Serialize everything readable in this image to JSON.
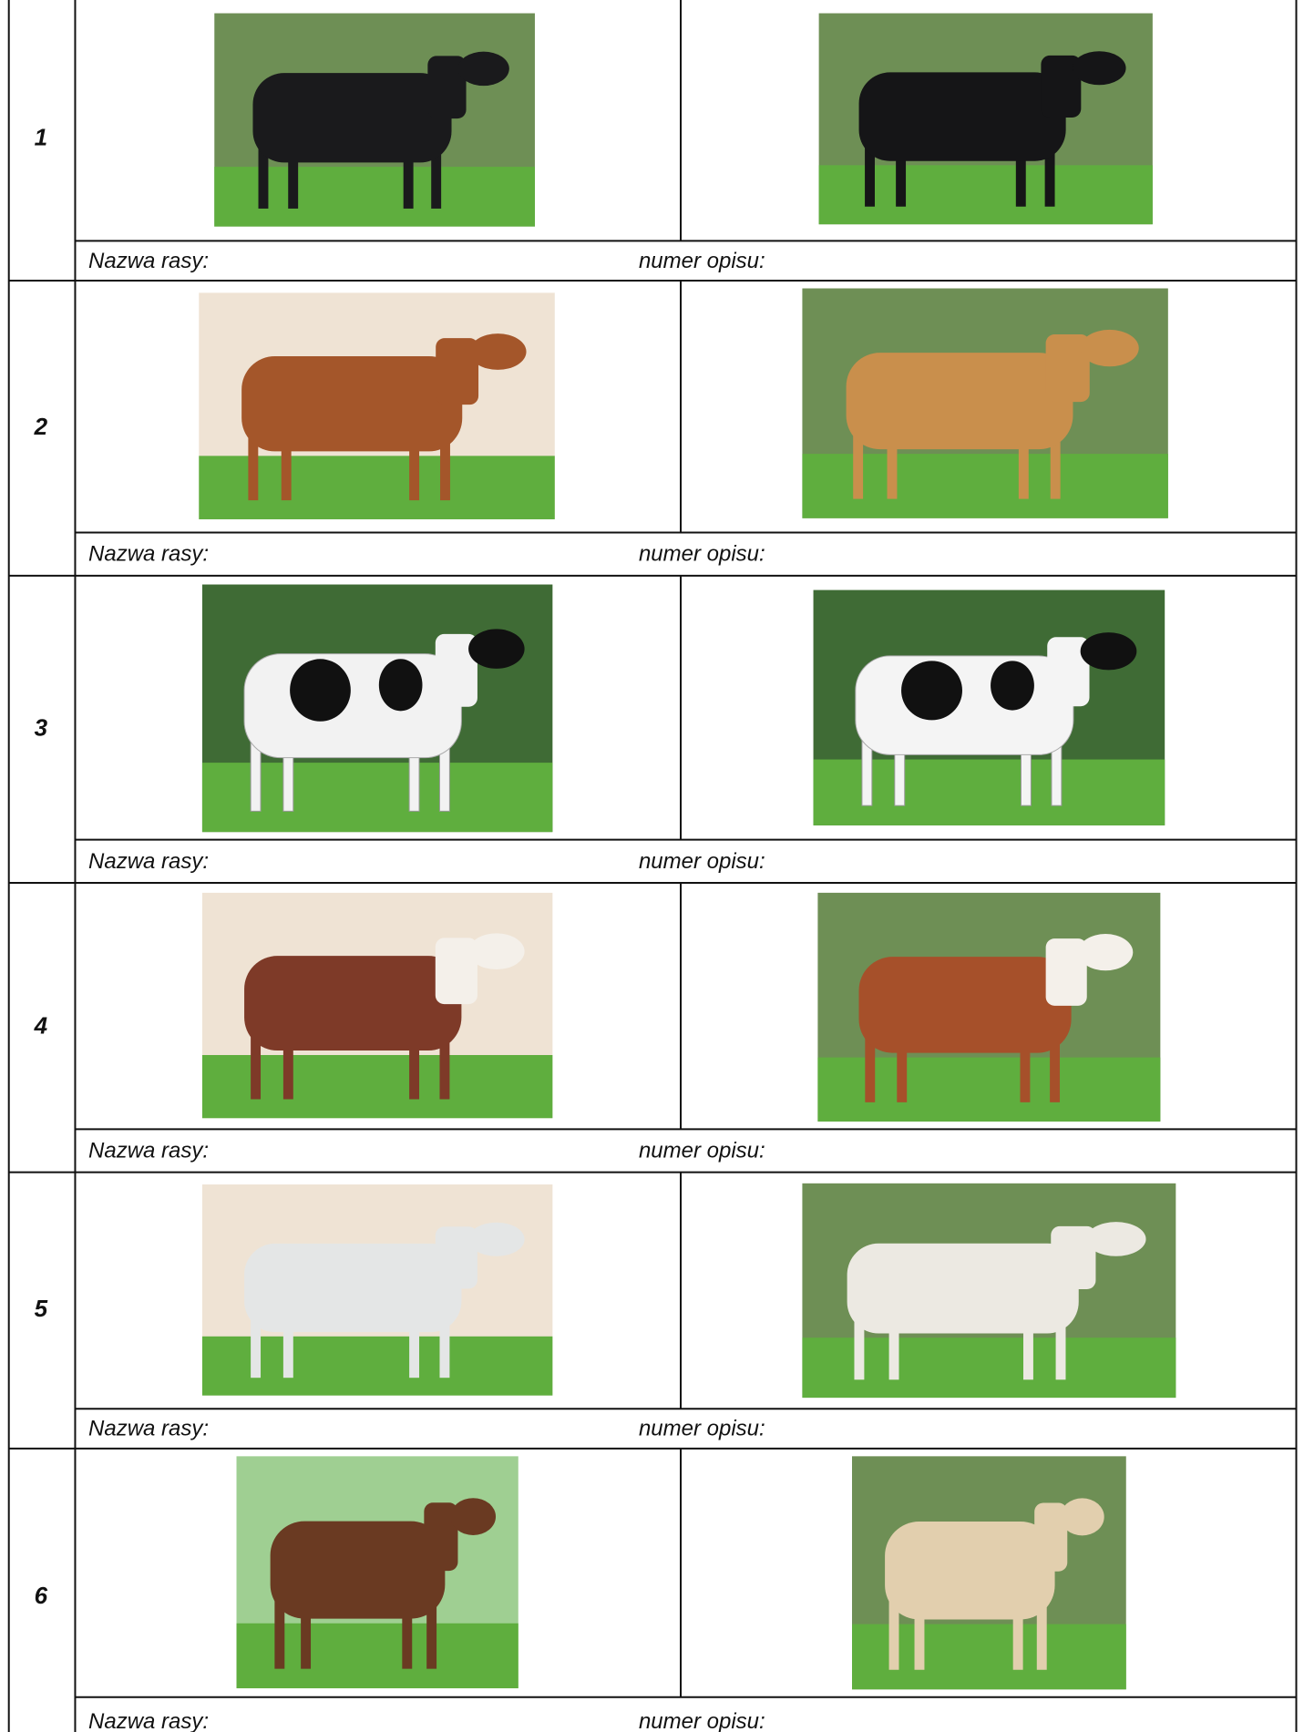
{
  "rows": [
    {
      "number": "1",
      "breed_label": "Nazwa rasy:",
      "description_label": "numer opisu:"
    },
    {
      "number": "2",
      "breed_label": "Nazwa rasy:",
      "description_label": "numer opisu:"
    },
    {
      "number": "3",
      "breed_label": "Nazwa rasy:",
      "description_label": "numer opisu:"
    },
    {
      "number": "4",
      "breed_label": "Nazwa rasy:",
      "description_label": "numer opisu:"
    },
    {
      "number": "5",
      "breed_label": "Nazwa rasy:",
      "description_label": "numer opisu:"
    },
    {
      "number": "6",
      "breed_label": "Nazwa rasy:",
      "description_label": "numer opisu:"
    }
  ]
}
